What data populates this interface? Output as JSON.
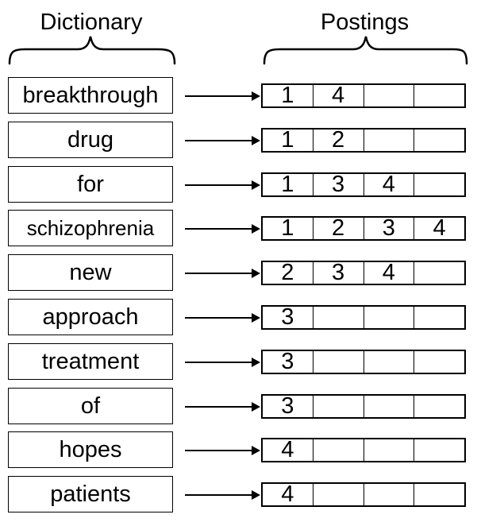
{
  "dictionary_header": "Dictionary",
  "postings_header": "Postings",
  "rows": [
    {
      "term": "breakthrough",
      "postings": [
        "1",
        "4",
        "",
        ""
      ]
    },
    {
      "term": "drug",
      "postings": [
        "1",
        "2",
        "",
        ""
      ]
    },
    {
      "term": "for",
      "postings": [
        "1",
        "3",
        "4",
        ""
      ]
    },
    {
      "term": "schizophrenia",
      "postings": [
        "1",
        "2",
        "3",
        "4"
      ]
    },
    {
      "term": "new",
      "postings": [
        "2",
        "3",
        "4",
        ""
      ]
    },
    {
      "term": "approach",
      "postings": [
        "3",
        "",
        "",
        ""
      ]
    },
    {
      "term": "treatment",
      "postings": [
        "3",
        "",
        "",
        ""
      ]
    },
    {
      "term": "of",
      "postings": [
        "3",
        "",
        "",
        ""
      ]
    },
    {
      "term": "hopes",
      "postings": [
        "4",
        "",
        "",
        ""
      ]
    },
    {
      "term": "patients",
      "postings": [
        "4",
        "",
        "",
        ""
      ]
    }
  ]
}
